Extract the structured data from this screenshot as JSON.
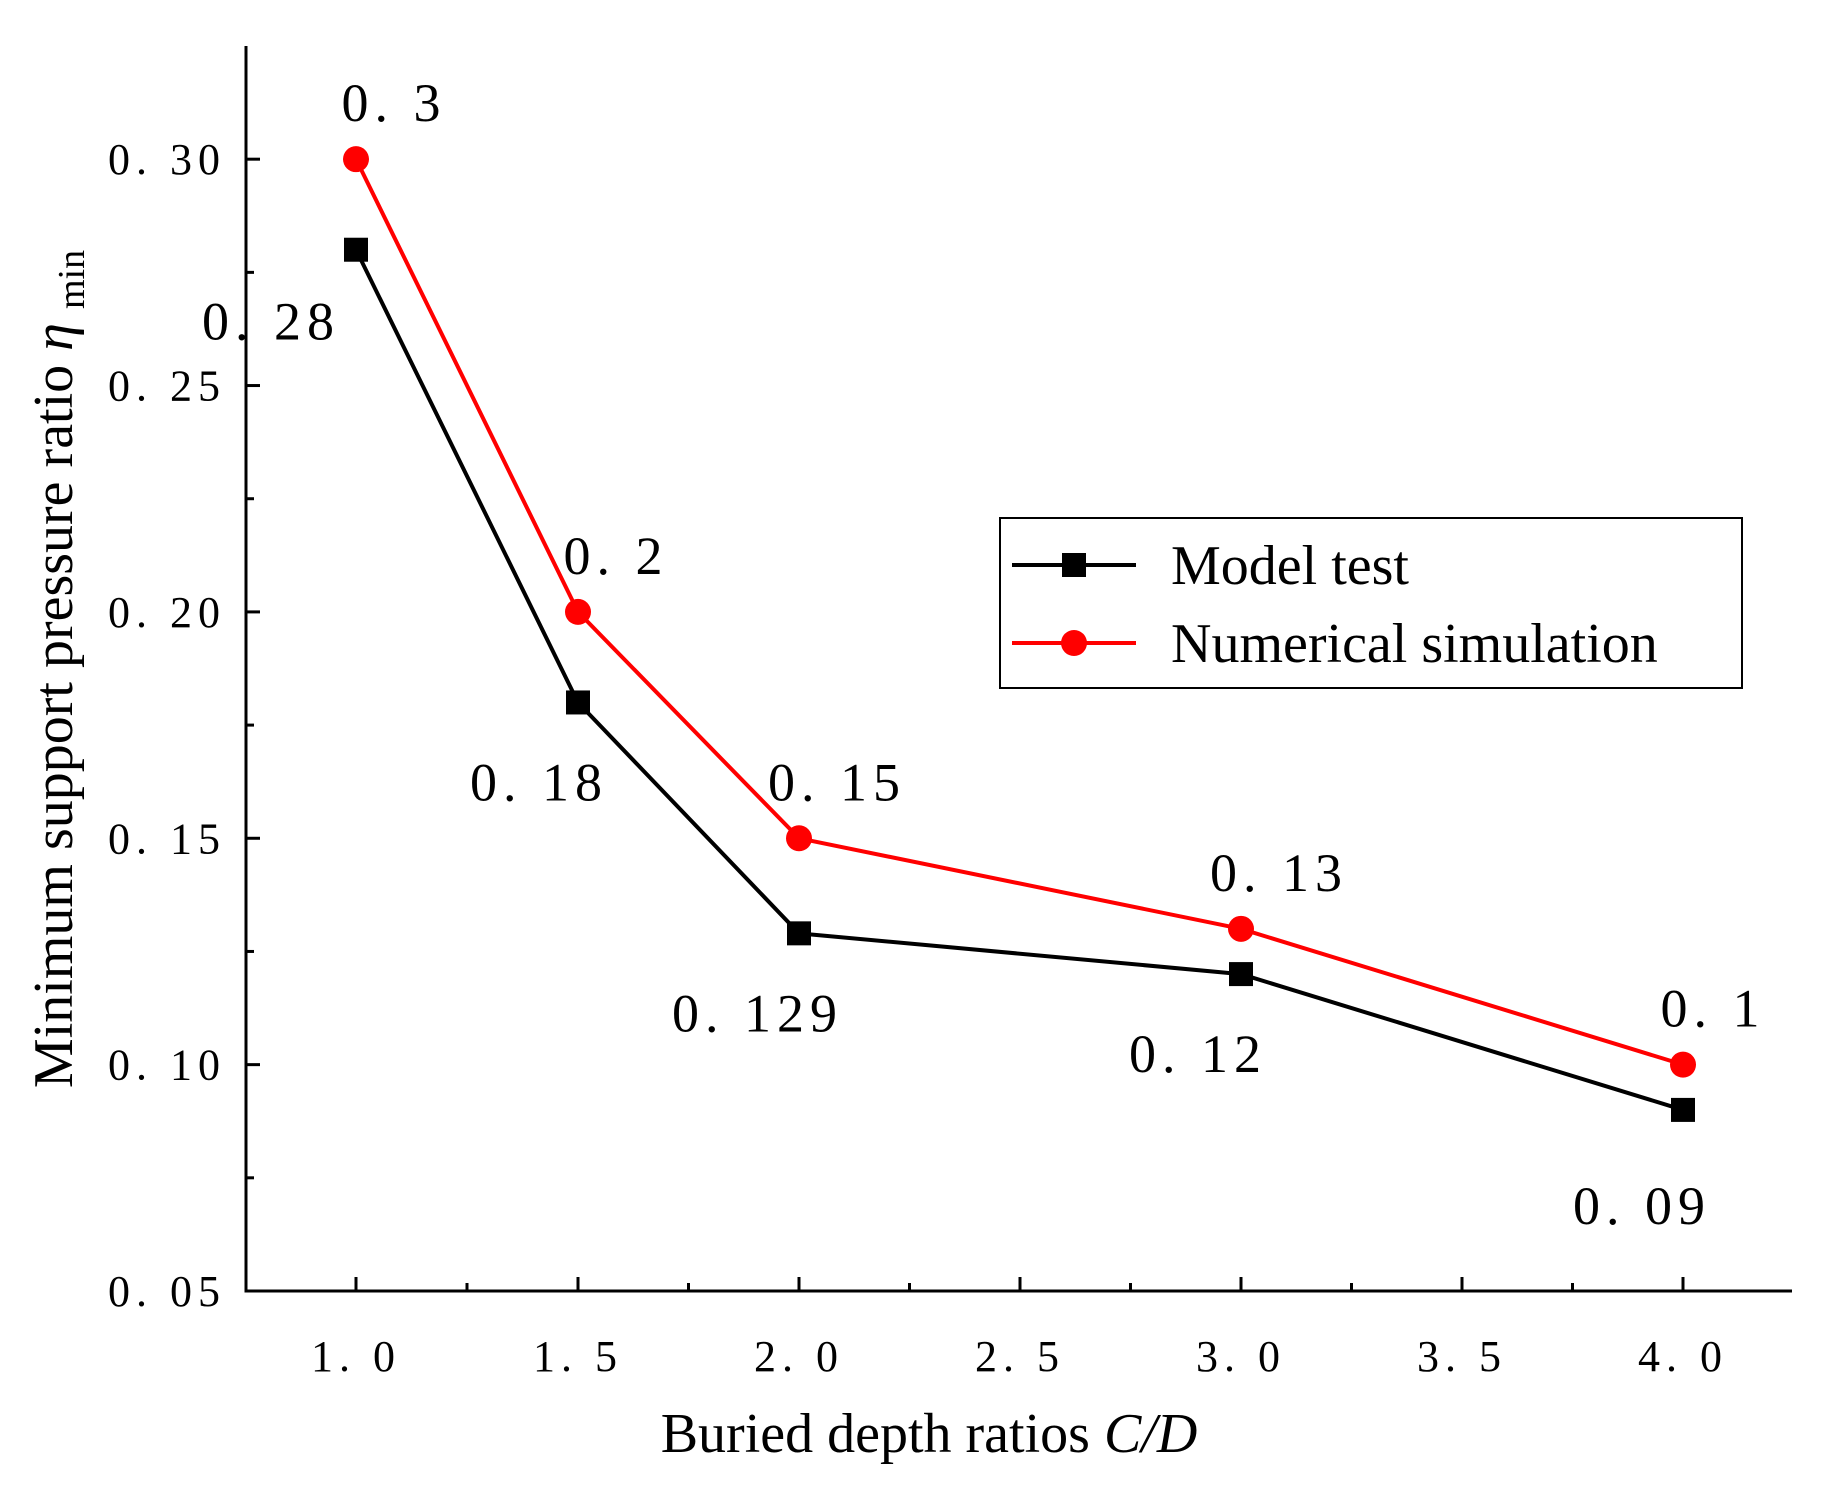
{
  "chart_data": {
    "type": "line",
    "title": "",
    "xlabel": {
      "text": "Buried depth ratios ",
      "italic_part": "C/D"
    },
    "ylabel": {
      "text": "Minimum support pressure ratio ",
      "symbol": "η",
      "subscript": "min"
    },
    "x_categories": [
      "1.0",
      "1.5",
      "2.0",
      "2.5",
      "3.0",
      "3.5",
      "4.0"
    ],
    "x_tick_labels": [
      "1. 0",
      "1. 5",
      "2. 0",
      "2. 5",
      "3. 0",
      "3. 5",
      "4. 0"
    ],
    "ylim": [
      0.05,
      0.325
    ],
    "y_ticks": [
      0.05,
      0.1,
      0.15,
      0.2,
      0.25,
      0.3
    ],
    "y_tick_labels": [
      "0. 05",
      "0. 10",
      "0. 15",
      "0. 20",
      "0. 25",
      "0. 30"
    ],
    "grid": false,
    "legend_position": "center-right",
    "series": [
      {
        "name": "Model test",
        "color": "#000000",
        "marker": "square",
        "x": [
          "1.0",
          "1.5",
          "2.0",
          "3.0",
          "4.0"
        ],
        "values": [
          0.28,
          0.18,
          0.129,
          0.12,
          0.09
        ],
        "labels": [
          "0. 28",
          "0. 18",
          "0. 129",
          "0. 12",
          "0. 09"
        ]
      },
      {
        "name": "Numerical simulation",
        "color": "#ff0000",
        "marker": "circle",
        "x": [
          "1.0",
          "1.5",
          "2.0",
          "3.0",
          "4.0"
        ],
        "values": [
          0.3,
          0.2,
          0.15,
          0.13,
          0.1
        ],
        "labels": [
          "0. 3",
          "0. 2",
          "0. 15",
          "0. 13",
          "0. 1"
        ]
      }
    ]
  }
}
